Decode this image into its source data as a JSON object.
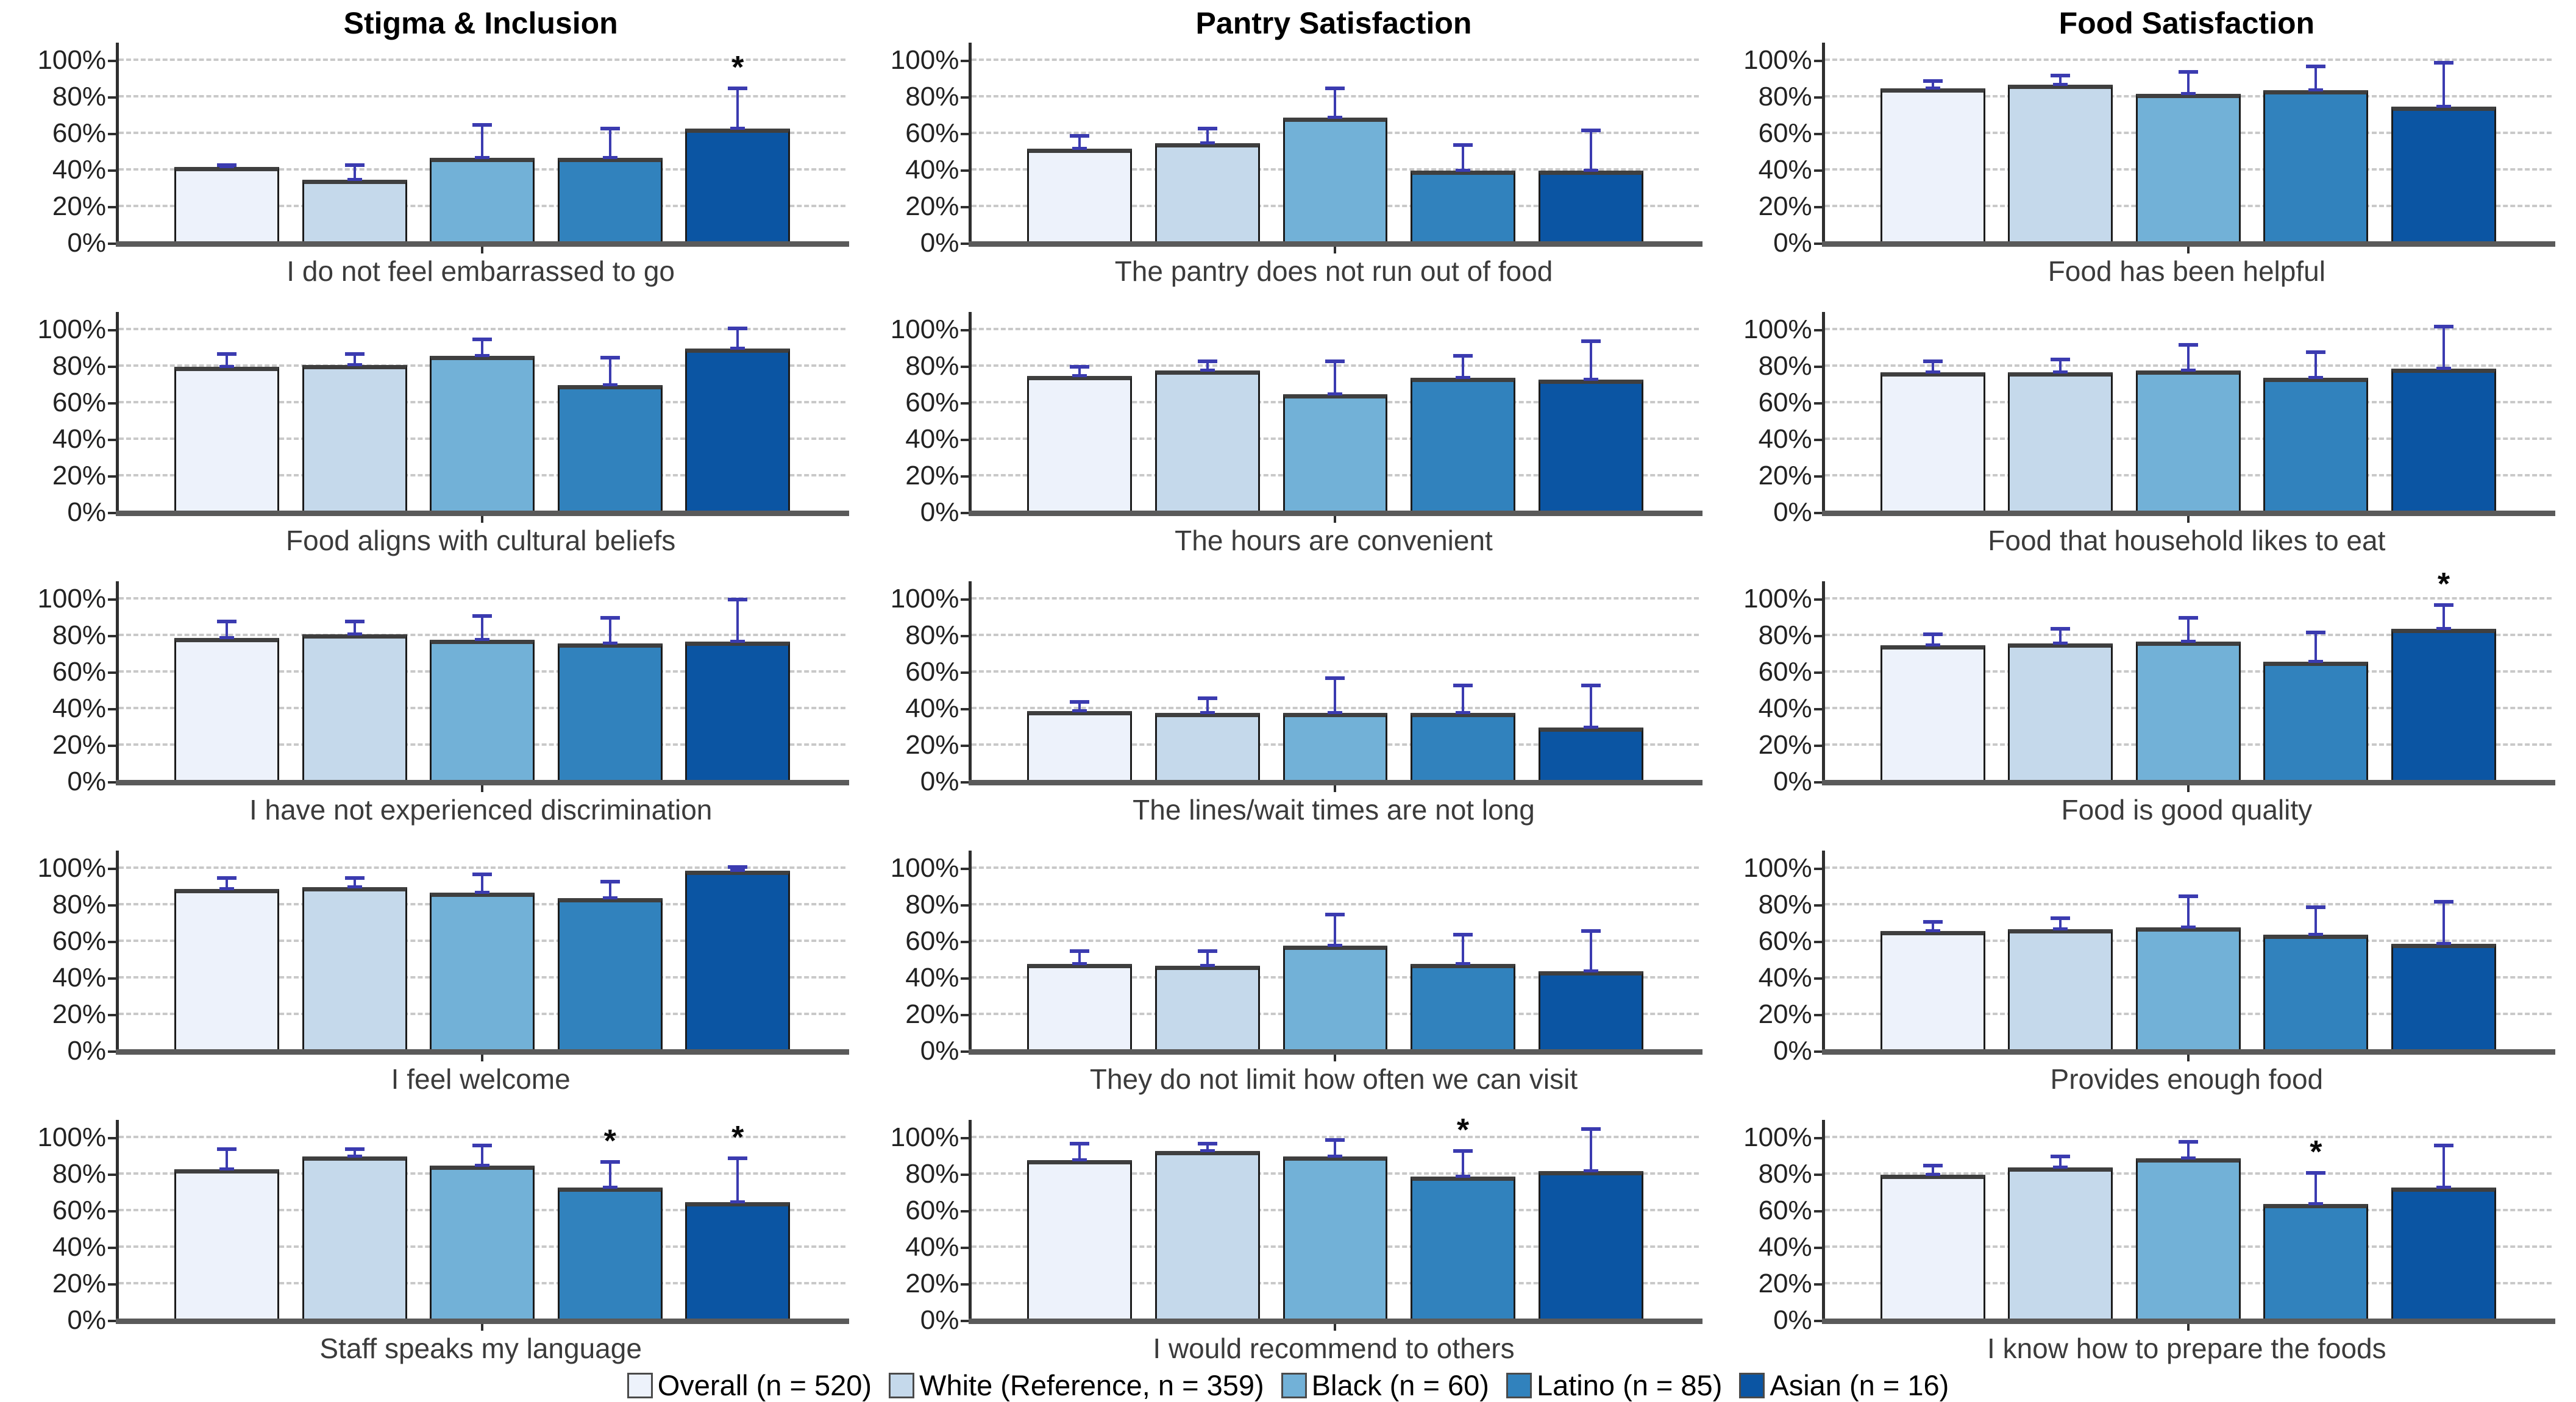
{
  "figure_title": "",
  "columns": [
    "Stigma & Inclusion",
    "Pantry Satisfaction",
    "Food Satisfaction"
  ],
  "colors": {
    "bar_fills": [
      "#EDF2FB",
      "#C5D9EB",
      "#72B1D7",
      "#3182BD",
      "#0B55A3"
    ],
    "error_bar": "#3b3bb0",
    "gridline": "#c9c9c9",
    "axis": "#2f2f2f",
    "baseline": "#5a5a5a"
  },
  "legend": {
    "items": [
      {
        "label": "Overall (n = 520)",
        "color": "#EDF2FB"
      },
      {
        "label": "White (Reference, n = 359)",
        "color": "#C5D9EB"
      },
      {
        "label": "Black (n = 60)",
        "color": "#72B1D7"
      },
      {
        "label": "Latino (n = 85)",
        "color": "#3182BD"
      },
      {
        "label": "Asian (n = 16)",
        "color": "#0B55A3"
      }
    ]
  },
  "chart_data": {
    "type": "bar",
    "unit": "percent",
    "ylim": [
      0,
      100
    ],
    "y_ticks": [
      {
        "label": "0%",
        "value": 0
      },
      {
        "label": "20%",
        "value": 20
      },
      {
        "label": "40%",
        "value": 40
      },
      {
        "label": "60%",
        "value": 60
      },
      {
        "label": "80%",
        "value": 80
      },
      {
        "label": "100%",
        "value": 100
      }
    ],
    "grid_values": [
      20,
      40,
      60,
      80,
      100
    ],
    "series_names": [
      "Overall",
      "White",
      "Black",
      "Latino",
      "Asian"
    ],
    "legend_position": "bottom",
    "significance_marker": "*",
    "panels": [
      {
        "column": "Stigma & Inclusion",
        "question": "I do not feel embarrassed to go",
        "values": [
          42,
          35,
          47,
          47,
          63
        ],
        "upper_ci": [
          43,
          43,
          65,
          63,
          85
        ],
        "sig": [
          false,
          false,
          false,
          false,
          true
        ]
      },
      {
        "column": "Pantry Satisfaction",
        "question": "The pantry does not run out of food",
        "values": [
          52,
          55,
          69,
          40,
          40
        ],
        "upper_ci": [
          59,
          63,
          85,
          54,
          62
        ],
        "sig": [
          false,
          false,
          false,
          false,
          false
        ]
      },
      {
        "column": "Food Satisfaction",
        "question": "Food has been helpful",
        "values": [
          85,
          87,
          82,
          84,
          75
        ],
        "upper_ci": [
          89,
          92,
          94,
          97,
          99
        ],
        "sig": [
          false,
          false,
          false,
          false,
          false
        ]
      },
      {
        "column": "Stigma & Inclusion",
        "question": "Food aligns with cultural beliefs",
        "values": [
          80,
          81,
          86,
          70,
          90
        ],
        "upper_ci": [
          87,
          87,
          95,
          85,
          101
        ],
        "sig": [
          false,
          false,
          false,
          false,
          false
        ]
      },
      {
        "column": "Pantry Satisfaction",
        "question": "The hours are convenient",
        "values": [
          75,
          78,
          65,
          74,
          73
        ],
        "upper_ci": [
          80,
          83,
          83,
          86,
          94
        ],
        "sig": [
          false,
          false,
          false,
          false,
          false
        ]
      },
      {
        "column": "Food Satisfaction",
        "question": "Food that household likes to eat",
        "values": [
          77,
          77,
          78,
          74,
          79
        ],
        "upper_ci": [
          83,
          84,
          92,
          88,
          102
        ],
        "sig": [
          false,
          false,
          false,
          false,
          false
        ]
      },
      {
        "column": "Stigma & Inclusion",
        "question": "I have not experienced discrimination",
        "values": [
          79,
          81,
          78,
          76,
          77
        ],
        "upper_ci": [
          88,
          88,
          91,
          90,
          100
        ],
        "sig": [
          false,
          false,
          false,
          false,
          false
        ]
      },
      {
        "column": "Pantry Satisfaction",
        "question": "The lines/wait times are not long",
        "values": [
          39,
          38,
          38,
          38,
          30
        ],
        "upper_ci": [
          44,
          46,
          57,
          53,
          53
        ],
        "sig": [
          false,
          false,
          false,
          false,
          false
        ]
      },
      {
        "column": "Food Satisfaction",
        "question": "Food is good quality",
        "values": [
          75,
          76,
          77,
          66,
          84
        ],
        "upper_ci": [
          81,
          84,
          90,
          82,
          97
        ],
        "sig": [
          false,
          false,
          false,
          false,
          true
        ]
      },
      {
        "column": "Stigma & Inclusion",
        "question": "I feel welcome",
        "values": [
          89,
          90,
          87,
          84,
          99
        ],
        "upper_ci": [
          95,
          95,
          97,
          93,
          101
        ],
        "sig": [
          false,
          false,
          false,
          false,
          false
        ]
      },
      {
        "column": "Pantry Satisfaction",
        "question": "They do not limit how often we can visit",
        "values": [
          48,
          47,
          58,
          48,
          44
        ],
        "upper_ci": [
          55,
          55,
          75,
          64,
          66
        ],
        "sig": [
          false,
          false,
          false,
          false,
          false
        ]
      },
      {
        "column": "Food Satisfaction",
        "question": "Provides enough food",
        "values": [
          66,
          67,
          68,
          64,
          59
        ],
        "upper_ci": [
          71,
          73,
          85,
          79,
          82
        ],
        "sig": [
          false,
          false,
          false,
          false,
          false
        ]
      },
      {
        "column": "Stigma & Inclusion",
        "question": "Staff speaks my language",
        "values": [
          83,
          90,
          85,
          73,
          65
        ],
        "upper_ci": [
          94,
          94,
          96,
          87,
          89
        ],
        "sig": [
          false,
          false,
          false,
          true,
          true
        ]
      },
      {
        "column": "Pantry Satisfaction",
        "question": "I would recommend to others",
        "values": [
          88,
          93,
          90,
          79,
          82
        ],
        "upper_ci": [
          97,
          97,
          99,
          93,
          105
        ],
        "sig": [
          false,
          false,
          false,
          true,
          false
        ]
      },
      {
        "column": "Food Satisfaction",
        "question": "I know how to prepare the foods",
        "values": [
          80,
          84,
          89,
          64,
          73
        ],
        "upper_ci": [
          85,
          90,
          98,
          81,
          96
        ],
        "sig": [
          false,
          false,
          false,
          true,
          false
        ]
      }
    ]
  }
}
